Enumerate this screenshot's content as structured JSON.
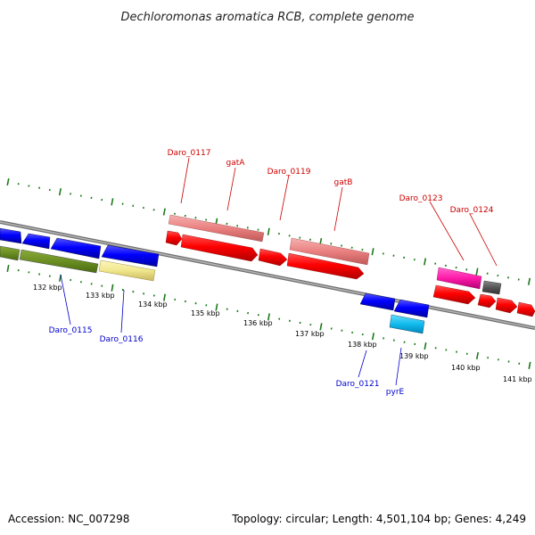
{
  "title": "Dechloromonas aromatica RCB, complete genome",
  "footer": {
    "accession": "Accession: NC_007298",
    "topology": "Topology: circular; Length: 4,501,104 bp; Genes: 4,249"
  },
  "colors": {
    "forward_label": "#cc0000",
    "reverse_label": "#0000cc",
    "tick": "#1a7a1a",
    "backbone": "#8a8a8a"
  },
  "tick_labels": [
    "132 kbp",
    "133 kbp",
    "134 kbp",
    "135 kbp",
    "136 kbp",
    "137 kbp",
    "138 kbp",
    "139 kbp",
    "140 kbp",
    "141 kbp"
  ],
  "gene_labels": [
    {
      "text": "Daro_0117",
      "strand": "forward"
    },
    {
      "text": "gatA",
      "strand": "forward"
    },
    {
      "text": "Daro_0119",
      "strand": "forward"
    },
    {
      "text": "gatB",
      "strand": "forward"
    },
    {
      "text": "Daro_0123",
      "strand": "forward"
    },
    {
      "text": "Daro_0124",
      "strand": "forward"
    },
    {
      "text": "Daro_0115",
      "strand": "reverse"
    },
    {
      "text": "Daro_0116",
      "strand": "reverse"
    },
    {
      "text": "Daro_0121",
      "strand": "reverse"
    },
    {
      "text": "pyrE",
      "strand": "reverse"
    }
  ]
}
